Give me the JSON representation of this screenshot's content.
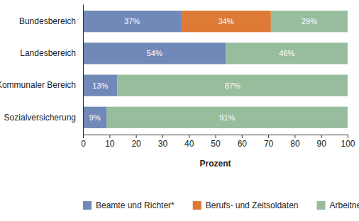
{
  "chart_data": {
    "type": "bar",
    "orientation": "horizontal",
    "stacked": true,
    "data_labels": true,
    "grid": false,
    "legend": "bottom",
    "categories": [
      "Bundesbereich",
      "Landesbereich",
      "Kommunaler Bereich",
      "Sozialversicherung"
    ],
    "series": [
      {
        "name": "Beamte und Richter*",
        "color": "#7189b8",
        "values": [
          37,
          54,
          13,
          9
        ],
        "value_labels": [
          "37%",
          "54%",
          "13%",
          "9%"
        ]
      },
      {
        "name": "Berufs- und Zeitsoldaten",
        "color": "#dd7a35",
        "values": [
          34,
          null,
          null,
          null
        ],
        "value_labels": [
          "34%",
          null,
          null,
          null
        ]
      },
      {
        "name": "Arbeitnehmer**",
        "color": "#97bd9d",
        "values": [
          29,
          46,
          87,
          91
        ],
        "value_labels": [
          "29%",
          "46%",
          "87%",
          "91%"
        ]
      }
    ],
    "xlabel": "Prozent",
    "xlim": [
      0,
      100
    ],
    "xticks": [
      0,
      10,
      20,
      30,
      40,
      50,
      60,
      70,
      80,
      90,
      100
    ]
  }
}
